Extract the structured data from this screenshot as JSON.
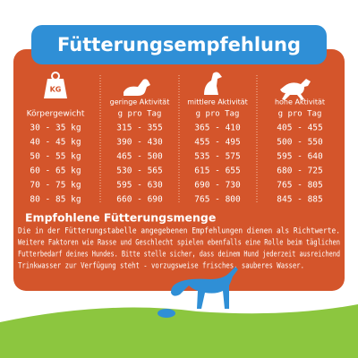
{
  "header": {
    "title": "Fütterungsempfehlung"
  },
  "table": {
    "columns": [
      {
        "label": "Körpergewicht"
      },
      {
        "activity": "geringe Aktivität",
        "unit": "g pro Tag"
      },
      {
        "activity": "mittlere Aktivität",
        "unit": "g pro Tag"
      },
      {
        "activity": "hohe Aktivität",
        "unit": "g pro Tag"
      }
    ],
    "rows": [
      [
        "30 - 35 kg",
        "315 - 355",
        "365 - 410",
        "405 - 455"
      ],
      [
        "40 - 45 kg",
        "390 - 430",
        "455 - 495",
        "500 - 550"
      ],
      [
        "50 - 55 kg",
        "465 - 500",
        "535 - 575",
        "595 - 640"
      ],
      [
        "60 - 65 kg",
        "530 - 565",
        "615 - 655",
        "680 - 725"
      ],
      [
        "70 - 75 kg",
        "595 - 630",
        "690 - 730",
        "765 - 805"
      ],
      [
        "80 - 85 kg",
        "660 - 690",
        "765 - 800",
        "845 - 885"
      ]
    ]
  },
  "note": {
    "title": "Empfohlene Fütterungsmenge",
    "lines": [
      "Die in der Fütterungstabelle angegebenen Empfehlungen dienen als Richtwerte.",
      "Weitere Faktoren wie Rasse und Geschlecht spielen ebenfalls eine Rolle beim täglichen",
      "Futterbedarf deines Hundes. Bitte stelle sicher, dass deinem Hund jederzeit ausreichend",
      "Trinkwasser zur Verfügung steht - vorzugsweise frisches, sauberes Wasser."
    ]
  }
}
